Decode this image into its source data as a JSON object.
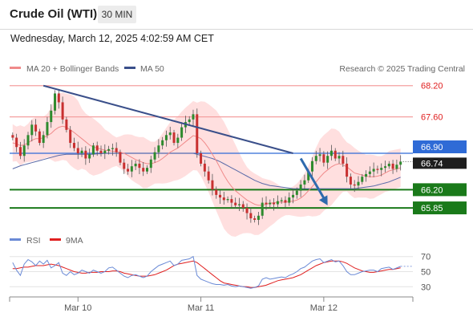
{
  "header": {
    "instrument": "Crude Oil (WTI)",
    "timeframe": "30 MIN",
    "datetime": "Wednesday, March 12, 2025 4:02:59 AM CET"
  },
  "legend": {
    "ma20": "MA 20 + Bollinger Bands",
    "ma50": "MA 50",
    "credit": "Research © 2025 Trading Central",
    "rsi": "RSI",
    "ma9": "9MA"
  },
  "colors": {
    "ma20": "#f08a8a",
    "ma50": "#5a6aa8",
    "band": "#ffd9d9",
    "resistance": "#f4a0a0",
    "pivot": "#2f6bd6",
    "support": "#1a7a1a",
    "trendline": "#3a4f8a",
    "arrow": "#2f6aad",
    "rsi": "#6a8ad6",
    "ma9": "#e02020",
    "candle_up": "#2e8b2e",
    "candle_down": "#c83030"
  },
  "chart_data": [
    {
      "type": "candlestick",
      "title": "Crude Oil (WTI)",
      "timeframe": "30 MIN",
      "x_tick_labels": [
        "Mar 10",
        "Mar 11",
        "Mar 12"
      ],
      "ylim": [
        65.45,
        68.35
      ],
      "levels": [
        {
          "value": 68.2,
          "label": "68.20",
          "kind": "resistance"
        },
        {
          "value": 67.6,
          "label": "67.60",
          "kind": "resistance"
        },
        {
          "value": 66.9,
          "label": "66.90",
          "kind": "pivot"
        },
        {
          "value": 66.2,
          "label": "66.20",
          "kind": "support"
        },
        {
          "value": 65.85,
          "label": "65.85",
          "kind": "support"
        }
      ],
      "current_price": {
        "value": 66.74,
        "label": "66.74"
      },
      "trendline": {
        "from": [
          8,
          68.2
        ],
        "to": [
          73,
          66.9
        ]
      },
      "forecast_arrow": {
        "from": [
          75,
          66.8
        ],
        "to": [
          82,
          65.9
        ]
      },
      "close": [
        67.2,
        67.02,
        66.85,
        67.05,
        67.25,
        67.45,
        67.32,
        67.1,
        67.25,
        67.5,
        67.72,
        68.05,
        67.88,
        67.55,
        67.35,
        67.1,
        67.0,
        66.9,
        66.95,
        66.8,
        66.88,
        67.05,
        66.95,
        66.9,
        66.95,
        66.98,
        67.0,
        66.92,
        66.72,
        66.6,
        66.55,
        66.65,
        66.7,
        66.62,
        66.55,
        66.62,
        66.78,
        66.92,
        67.05,
        67.15,
        67.25,
        67.3,
        67.1,
        67.2,
        67.4,
        67.5,
        67.55,
        67.65,
        66.9,
        66.7,
        66.55,
        66.38,
        66.2,
        66.1,
        66.05,
        66.0,
        66.02,
        65.95,
        65.9,
        65.92,
        65.85,
        65.75,
        65.65,
        65.62,
        65.7,
        65.95,
        65.92,
        65.95,
        65.92,
        65.98,
        66.0,
        65.95,
        66.05,
        66.1,
        66.18,
        66.3,
        66.38,
        66.55,
        66.75,
        66.85,
        66.88,
        66.72,
        66.85,
        66.95,
        66.8,
        66.85,
        66.7,
        66.45,
        66.3,
        66.28,
        66.35,
        66.45,
        66.5,
        66.55,
        66.6,
        66.58,
        66.62,
        66.65,
        66.7,
        66.6,
        66.68,
        66.74
      ],
      "ma20": [
        67.1,
        67.08,
        67.05,
        67.06,
        67.1,
        67.15,
        67.18,
        67.18,
        67.2,
        67.24,
        67.28,
        67.35,
        67.4,
        67.42,
        67.4,
        67.35,
        67.3,
        67.24,
        67.18,
        67.12,
        67.06,
        67.02,
        67.0,
        66.98,
        66.96,
        66.95,
        66.94,
        66.93,
        66.92,
        66.9,
        66.86,
        66.82,
        66.78,
        66.75,
        66.72,
        66.7,
        66.7,
        66.72,
        66.75,
        66.8,
        66.86,
        66.92,
        66.96,
        67.0,
        67.06,
        67.12,
        67.18,
        67.24,
        67.22,
        67.18,
        67.1,
        67.0,
        66.88,
        66.76,
        66.62,
        66.48,
        66.36,
        66.26,
        66.18,
        66.12,
        66.06,
        66.0,
        65.96,
        65.92,
        65.9,
        65.9,
        65.92,
        65.94,
        65.95,
        65.96,
        65.96,
        65.96,
        65.97,
        65.98,
        66.0,
        66.04,
        66.1,
        66.18,
        66.26,
        66.35,
        66.44,
        66.52,
        66.58,
        66.64,
        66.68,
        66.7,
        66.68,
        66.64,
        66.58,
        66.52,
        66.5,
        66.48,
        66.46,
        66.45,
        66.45,
        66.46,
        66.48,
        66.52,
        66.56,
        66.58,
        66.6,
        66.62
      ],
      "ma50": [
        66.6,
        66.63,
        66.66,
        66.68,
        66.7,
        66.72,
        66.74,
        66.76,
        66.78,
        66.8,
        66.82,
        66.84,
        66.86,
        66.87,
        66.88,
        66.88,
        66.88,
        66.88,
        66.88,
        66.88,
        66.88,
        66.88,
        66.89,
        66.89,
        66.9,
        66.9,
        66.9,
        66.9,
        66.9,
        66.9,
        66.9,
        66.9,
        66.9,
        66.9,
        66.9,
        66.9,
        66.9,
        66.9,
        66.9,
        66.9,
        66.9,
        66.9,
        66.9,
        66.9,
        66.9,
        66.9,
        66.9,
        66.9,
        66.88,
        66.86,
        66.84,
        66.82,
        66.8,
        66.77,
        66.74,
        66.7,
        66.66,
        66.62,
        66.58,
        66.54,
        66.5,
        66.46,
        66.42,
        66.38,
        66.35,
        66.32,
        66.3,
        66.28,
        66.27,
        66.26,
        66.25,
        66.24,
        66.23,
        66.22,
        66.22,
        66.22,
        66.22,
        66.22,
        66.22,
        66.22,
        66.22,
        66.22,
        66.22,
        66.22,
        66.22,
        66.22,
        66.22,
        66.22,
        66.22,
        66.22,
        66.23,
        66.24,
        66.25,
        66.26,
        66.27,
        66.29,
        66.31,
        66.33,
        66.35,
        66.38,
        66.41,
        66.44
      ]
    },
    {
      "type": "line",
      "title": "RSI",
      "y_tick_labels": [
        "70",
        "50",
        "30"
      ],
      "ylim": [
        25,
        75
      ],
      "rsi": [
        62,
        52,
        45,
        60,
        66,
        63,
        58,
        64,
        60,
        65,
        55,
        58,
        62,
        48,
        45,
        50,
        46,
        48,
        52,
        50,
        48,
        52,
        50,
        48,
        50,
        55,
        56,
        52,
        48,
        44,
        42,
        45,
        46,
        44,
        42,
        44,
        50,
        54,
        58,
        60,
        62,
        64,
        58,
        60,
        65,
        66,
        67,
        70,
        45,
        40,
        38,
        36,
        34,
        33,
        33,
        32,
        33,
        31,
        30,
        31,
        30,
        29,
        28,
        29,
        31,
        40,
        42,
        40,
        41,
        42,
        43,
        42,
        45,
        47,
        50,
        54,
        56,
        60,
        64,
        66,
        67,
        62,
        64,
        66,
        63,
        64,
        58,
        50,
        46,
        46,
        48,
        50,
        51,
        52,
        52,
        50,
        54,
        55,
        56,
        53,
        55,
        57
      ],
      "ma9": [
        54,
        54,
        55,
        56,
        56,
        57,
        58,
        58,
        58,
        59,
        60,
        59,
        58,
        56,
        54,
        52,
        50,
        49,
        48,
        48,
        49,
        49,
        49,
        50,
        50,
        50,
        51,
        51,
        50,
        48,
        47,
        46,
        45,
        44,
        44,
        44,
        45,
        46,
        48,
        50,
        52,
        55,
        58,
        60,
        61,
        62,
        63,
        64,
        62,
        58,
        54,
        50,
        46,
        42,
        38,
        35,
        34,
        33,
        32,
        31,
        30,
        30,
        29,
        29,
        30,
        31,
        32,
        34,
        36,
        38,
        39,
        40,
        41,
        42,
        44,
        46,
        49,
        52,
        55,
        58,
        60,
        62,
        63,
        64,
        64,
        64,
        63,
        61,
        58,
        55,
        53,
        51,
        50,
        49,
        49,
        50,
        51,
        52,
        53,
        53,
        54,
        55
      ]
    }
  ]
}
